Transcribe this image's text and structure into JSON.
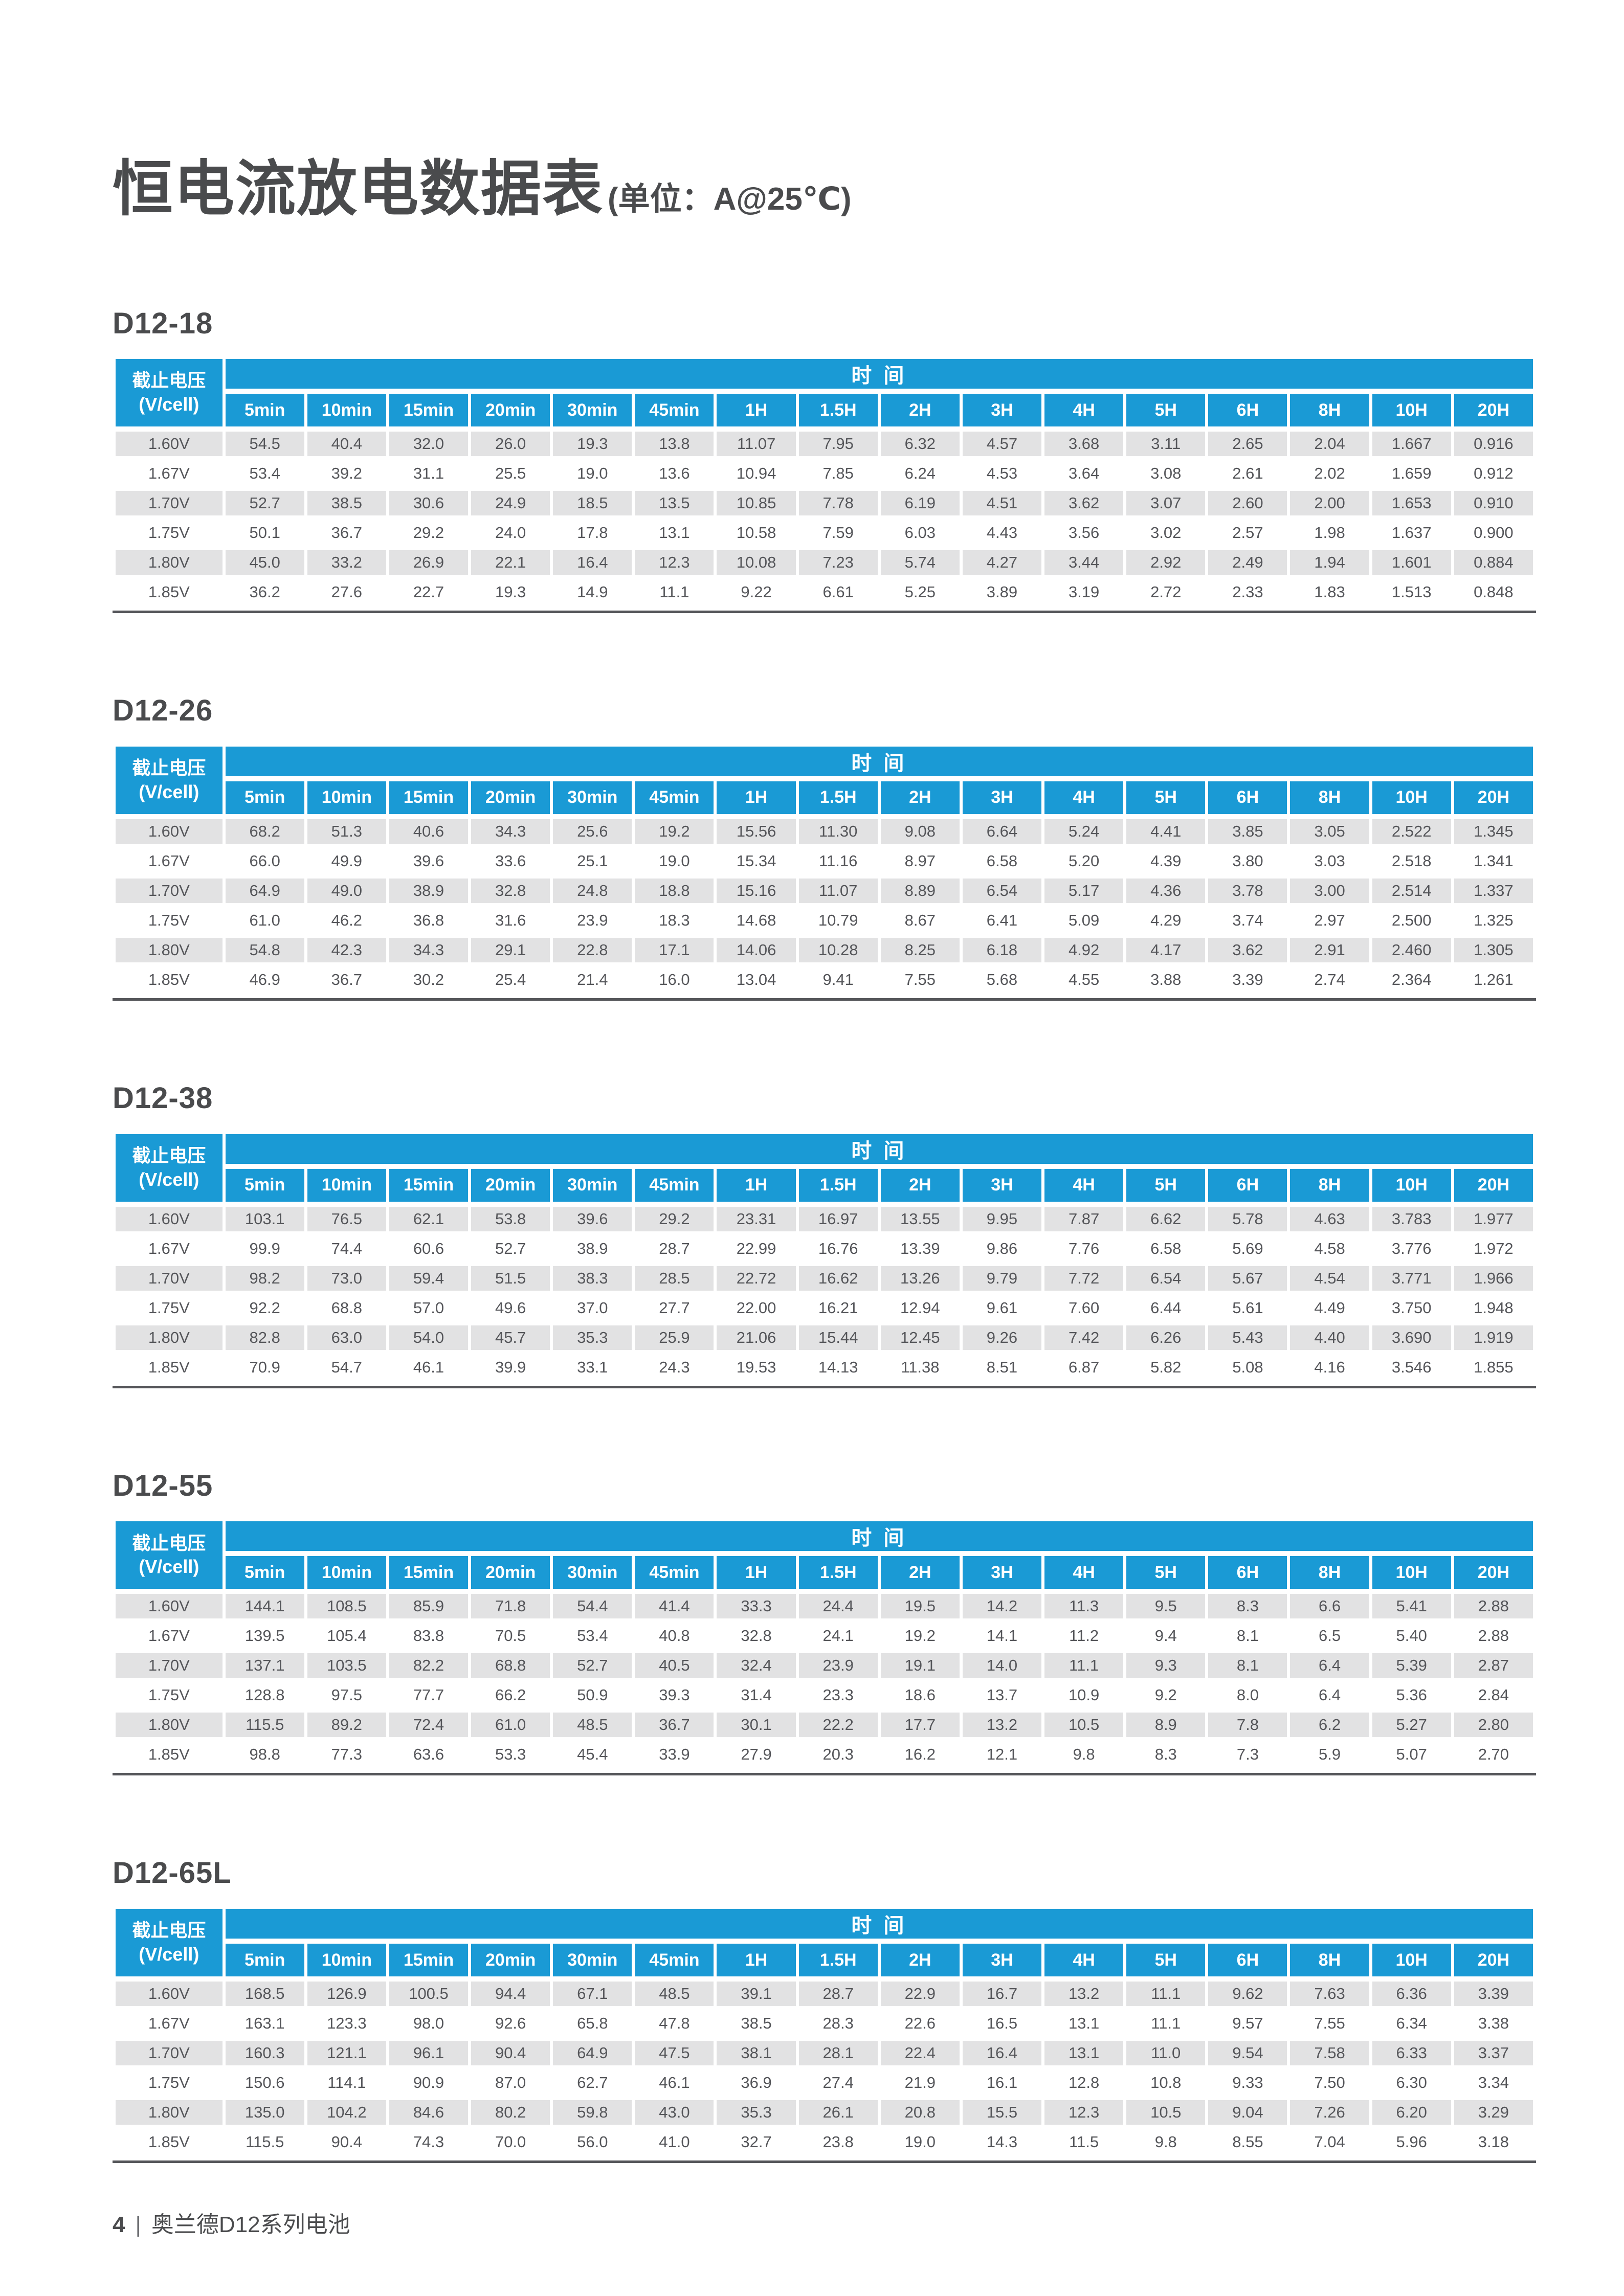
{
  "page": {
    "title": "恒电流放电数据表",
    "title_unit": "(单位：A@25℃)",
    "footer_page": "4",
    "footer_separator": "|",
    "footer_text": "奥兰德D12系列电池"
  },
  "colors": {
    "header_blue": "#1a9ad5",
    "stripe_gray": "#e2e2e3",
    "text_gray": "#55565a",
    "heading_gray": "#4a4b4d"
  },
  "table_template": {
    "voltage_header_line1": "截止电压",
    "voltage_header_line2": "(V/cell)",
    "time_header": "时 间",
    "time_columns": [
      "5min",
      "10min",
      "15min",
      "20min",
      "30min",
      "45min",
      "1H",
      "1.5H",
      "2H",
      "3H",
      "4H",
      "5H",
      "6H",
      "8H",
      "10H",
      "20H"
    ]
  },
  "tables": [
    {
      "model": "D12-18",
      "rows": [
        {
          "voltage": "1.60V",
          "values": [
            "54.5",
            "40.4",
            "32.0",
            "26.0",
            "19.3",
            "13.8",
            "11.07",
            "7.95",
            "6.32",
            "4.57",
            "3.68",
            "3.11",
            "2.65",
            "2.04",
            "1.667",
            "0.916"
          ]
        },
        {
          "voltage": "1.67V",
          "values": [
            "53.4",
            "39.2",
            "31.1",
            "25.5",
            "19.0",
            "13.6",
            "10.94",
            "7.85",
            "6.24",
            "4.53",
            "3.64",
            "3.08",
            "2.61",
            "2.02",
            "1.659",
            "0.912"
          ]
        },
        {
          "voltage": "1.70V",
          "values": [
            "52.7",
            "38.5",
            "30.6",
            "24.9",
            "18.5",
            "13.5",
            "10.85",
            "7.78",
            "6.19",
            "4.51",
            "3.62",
            "3.07",
            "2.60",
            "2.00",
            "1.653",
            "0.910"
          ]
        },
        {
          "voltage": "1.75V",
          "values": [
            "50.1",
            "36.7",
            "29.2",
            "24.0",
            "17.8",
            "13.1",
            "10.58",
            "7.59",
            "6.03",
            "4.43",
            "3.56",
            "3.02",
            "2.57",
            "1.98",
            "1.637",
            "0.900"
          ]
        },
        {
          "voltage": "1.80V",
          "values": [
            "45.0",
            "33.2",
            "26.9",
            "22.1",
            "16.4",
            "12.3",
            "10.08",
            "7.23",
            "5.74",
            "4.27",
            "3.44",
            "2.92",
            "2.49",
            "1.94",
            "1.601",
            "0.884"
          ]
        },
        {
          "voltage": "1.85V",
          "values": [
            "36.2",
            "27.6",
            "22.7",
            "19.3",
            "14.9",
            "11.1",
            "9.22",
            "6.61",
            "5.25",
            "3.89",
            "3.19",
            "2.72",
            "2.33",
            "1.83",
            "1.513",
            "0.848"
          ]
        }
      ]
    },
    {
      "model": "D12-26",
      "rows": [
        {
          "voltage": "1.60V",
          "values": [
            "68.2",
            "51.3",
            "40.6",
            "34.3",
            "25.6",
            "19.2",
            "15.56",
            "11.30",
            "9.08",
            "6.64",
            "5.24",
            "4.41",
            "3.85",
            "3.05",
            "2.522",
            "1.345"
          ]
        },
        {
          "voltage": "1.67V",
          "values": [
            "66.0",
            "49.9",
            "39.6",
            "33.6",
            "25.1",
            "19.0",
            "15.34",
            "11.16",
            "8.97",
            "6.58",
            "5.20",
            "4.39",
            "3.80",
            "3.03",
            "2.518",
            "1.341"
          ]
        },
        {
          "voltage": "1.70V",
          "values": [
            "64.9",
            "49.0",
            "38.9",
            "32.8",
            "24.8",
            "18.8",
            "15.16",
            "11.07",
            "8.89",
            "6.54",
            "5.17",
            "4.36",
            "3.78",
            "3.00",
            "2.514",
            "1.337"
          ]
        },
        {
          "voltage": "1.75V",
          "values": [
            "61.0",
            "46.2",
            "36.8",
            "31.6",
            "23.9",
            "18.3",
            "14.68",
            "10.79",
            "8.67",
            "6.41",
            "5.09",
            "4.29",
            "3.74",
            "2.97",
            "2.500",
            "1.325"
          ]
        },
        {
          "voltage": "1.80V",
          "values": [
            "54.8",
            "42.3",
            "34.3",
            "29.1",
            "22.8",
            "17.1",
            "14.06",
            "10.28",
            "8.25",
            "6.18",
            "4.92",
            "4.17",
            "3.62",
            "2.91",
            "2.460",
            "1.305"
          ]
        },
        {
          "voltage": "1.85V",
          "values": [
            "46.9",
            "36.7",
            "30.2",
            "25.4",
            "21.4",
            "16.0",
            "13.04",
            "9.41",
            "7.55",
            "5.68",
            "4.55",
            "3.88",
            "3.39",
            "2.74",
            "2.364",
            "1.261"
          ]
        }
      ]
    },
    {
      "model": "D12-38",
      "rows": [
        {
          "voltage": "1.60V",
          "values": [
            "103.1",
            "76.5",
            "62.1",
            "53.8",
            "39.6",
            "29.2",
            "23.31",
            "16.97",
            "13.55",
            "9.95",
            "7.87",
            "6.62",
            "5.78",
            "4.63",
            "3.783",
            "1.977"
          ]
        },
        {
          "voltage": "1.67V",
          "values": [
            "99.9",
            "74.4",
            "60.6",
            "52.7",
            "38.9",
            "28.7",
            "22.99",
            "16.76",
            "13.39",
            "9.86",
            "7.76",
            "6.58",
            "5.69",
            "4.58",
            "3.776",
            "1.972"
          ]
        },
        {
          "voltage": "1.70V",
          "values": [
            "98.2",
            "73.0",
            "59.4",
            "51.5",
            "38.3",
            "28.5",
            "22.72",
            "16.62",
            "13.26",
            "9.79",
            "7.72",
            "6.54",
            "5.67",
            "4.54",
            "3.771",
            "1.966"
          ]
        },
        {
          "voltage": "1.75V",
          "values": [
            "92.2",
            "68.8",
            "57.0",
            "49.6",
            "37.0",
            "27.7",
            "22.00",
            "16.21",
            "12.94",
            "9.61",
            "7.60",
            "6.44",
            "5.61",
            "4.49",
            "3.750",
            "1.948"
          ]
        },
        {
          "voltage": "1.80V",
          "values": [
            "82.8",
            "63.0",
            "54.0",
            "45.7",
            "35.3",
            "25.9",
            "21.06",
            "15.44",
            "12.45",
            "9.26",
            "7.42",
            "6.26",
            "5.43",
            "4.40",
            "3.690",
            "1.919"
          ]
        },
        {
          "voltage": "1.85V",
          "values": [
            "70.9",
            "54.7",
            "46.1",
            "39.9",
            "33.1",
            "24.3",
            "19.53",
            "14.13",
            "11.38",
            "8.51",
            "6.87",
            "5.82",
            "5.08",
            "4.16",
            "3.546",
            "1.855"
          ]
        }
      ]
    },
    {
      "model": "D12-55",
      "rows": [
        {
          "voltage": "1.60V",
          "values": [
            "144.1",
            "108.5",
            "85.9",
            "71.8",
            "54.4",
            "41.4",
            "33.3",
            "24.4",
            "19.5",
            "14.2",
            "11.3",
            "9.5",
            "8.3",
            "6.6",
            "5.41",
            "2.88"
          ]
        },
        {
          "voltage": "1.67V",
          "values": [
            "139.5",
            "105.4",
            "83.8",
            "70.5",
            "53.4",
            "40.8",
            "32.8",
            "24.1",
            "19.2",
            "14.1",
            "11.2",
            "9.4",
            "8.1",
            "6.5",
            "5.40",
            "2.88"
          ]
        },
        {
          "voltage": "1.70V",
          "values": [
            "137.1",
            "103.5",
            "82.2",
            "68.8",
            "52.7",
            "40.5",
            "32.4",
            "23.9",
            "19.1",
            "14.0",
            "11.1",
            "9.3",
            "8.1",
            "6.4",
            "5.39",
            "2.87"
          ]
        },
        {
          "voltage": "1.75V",
          "values": [
            "128.8",
            "97.5",
            "77.7",
            "66.2",
            "50.9",
            "39.3",
            "31.4",
            "23.3",
            "18.6",
            "13.7",
            "10.9",
            "9.2",
            "8.0",
            "6.4",
            "5.36",
            "2.84"
          ]
        },
        {
          "voltage": "1.80V",
          "values": [
            "115.5",
            "89.2",
            "72.4",
            "61.0",
            "48.5",
            "36.7",
            "30.1",
            "22.2",
            "17.7",
            "13.2",
            "10.5",
            "8.9",
            "7.8",
            "6.2",
            "5.27",
            "2.80"
          ]
        },
        {
          "voltage": "1.85V",
          "values": [
            "98.8",
            "77.3",
            "63.6",
            "53.3",
            "45.4",
            "33.9",
            "27.9",
            "20.3",
            "16.2",
            "12.1",
            "9.8",
            "8.3",
            "7.3",
            "5.9",
            "5.07",
            "2.70"
          ]
        }
      ]
    },
    {
      "model": "D12-65L",
      "rows": [
        {
          "voltage": "1.60V",
          "values": [
            "168.5",
            "126.9",
            "100.5",
            "94.4",
            "67.1",
            "48.5",
            "39.1",
            "28.7",
            "22.9",
            "16.7",
            "13.2",
            "11.1",
            "9.62",
            "7.63",
            "6.36",
            "3.39"
          ]
        },
        {
          "voltage": "1.67V",
          "values": [
            "163.1",
            "123.3",
            "98.0",
            "92.6",
            "65.8",
            "47.8",
            "38.5",
            "28.3",
            "22.6",
            "16.5",
            "13.1",
            "11.1",
            "9.57",
            "7.55",
            "6.34",
            "3.38"
          ]
        },
        {
          "voltage": "1.70V",
          "values": [
            "160.3",
            "121.1",
            "96.1",
            "90.4",
            "64.9",
            "47.5",
            "38.1",
            "28.1",
            "22.4",
            "16.4",
            "13.1",
            "11.0",
            "9.54",
            "7.58",
            "6.33",
            "3.37"
          ]
        },
        {
          "voltage": "1.75V",
          "values": [
            "150.6",
            "114.1",
            "90.9",
            "87.0",
            "62.7",
            "46.1",
            "36.9",
            "27.4",
            "21.9",
            "16.1",
            "12.8",
            "10.8",
            "9.33",
            "7.50",
            "6.30",
            "3.34"
          ]
        },
        {
          "voltage": "1.80V",
          "values": [
            "135.0",
            "104.2",
            "84.6",
            "80.2",
            "59.8",
            "43.0",
            "35.3",
            "26.1",
            "20.8",
            "15.5",
            "12.3",
            "10.5",
            "9.04",
            "7.26",
            "6.20",
            "3.29"
          ]
        },
        {
          "voltage": "1.85V",
          "values": [
            "115.5",
            "90.4",
            "74.3",
            "70.0",
            "56.0",
            "41.0",
            "32.7",
            "23.8",
            "19.0",
            "14.3",
            "11.5",
            "9.8",
            "8.55",
            "7.04",
            "5.96",
            "3.18"
          ]
        }
      ]
    }
  ]
}
